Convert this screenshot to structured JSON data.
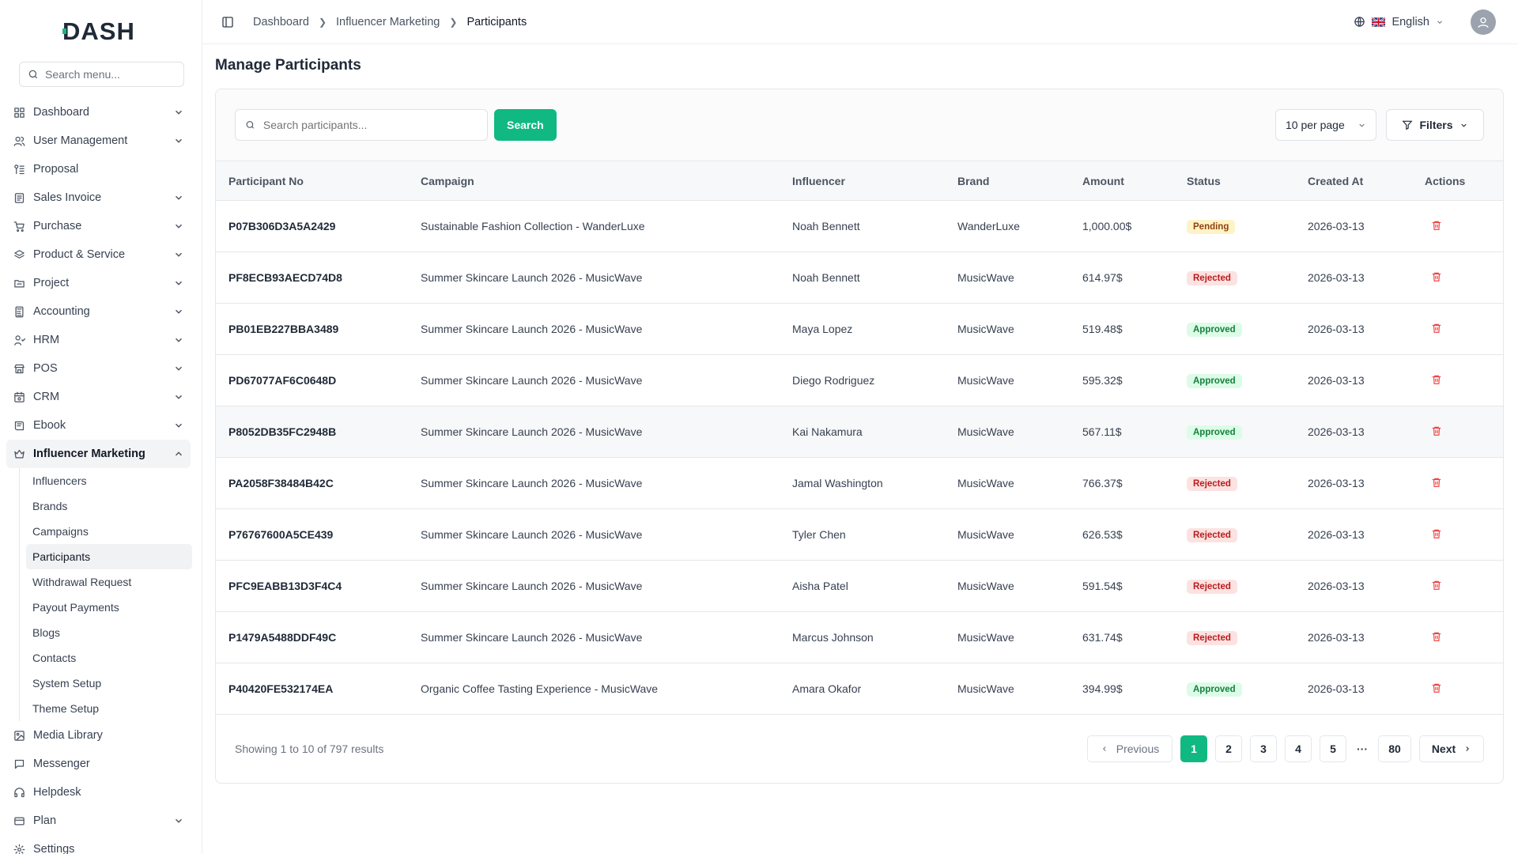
{
  "app": {
    "logo_text": "DASH"
  },
  "sidebar": {
    "search_placeholder": "Search menu...",
    "items": [
      {
        "label": "Dashboard",
        "icon": "grid-icon",
        "chevron": true
      },
      {
        "label": "User Management",
        "icon": "users-icon",
        "chevron": true
      },
      {
        "label": "Proposal",
        "icon": "proposal-icon",
        "chevron": false
      },
      {
        "label": "Sales Invoice",
        "icon": "invoice-icon",
        "chevron": true
      },
      {
        "label": "Purchase",
        "icon": "cart-icon",
        "chevron": true
      },
      {
        "label": "Product & Service",
        "icon": "layers-icon",
        "chevron": true
      },
      {
        "label": "Project",
        "icon": "folder-icon",
        "chevron": true
      },
      {
        "label": "Accounting",
        "icon": "calculator-icon",
        "chevron": true
      },
      {
        "label": "HRM",
        "icon": "hrm-icon",
        "chevron": true
      },
      {
        "label": "POS",
        "icon": "store-icon",
        "chevron": true
      },
      {
        "label": "CRM",
        "icon": "crm-icon",
        "chevron": true
      },
      {
        "label": "Ebook",
        "icon": "book-icon",
        "chevron": true
      },
      {
        "label": "Influencer Marketing",
        "icon": "crown-icon",
        "chevron": true,
        "open": true
      }
    ],
    "sub_items": [
      "Influencers",
      "Brands",
      "Campaigns",
      "Participants",
      "Withdrawal Request",
      "Payout Payments",
      "Blogs",
      "Contacts",
      "System Setup",
      "Theme Setup"
    ],
    "active_sub": "Participants",
    "bottom_items": [
      {
        "label": "Media Library",
        "icon": "image-icon",
        "chevron": false
      },
      {
        "label": "Messenger",
        "icon": "message-icon",
        "chevron": false
      },
      {
        "label": "Helpdesk",
        "icon": "headset-icon",
        "chevron": false
      },
      {
        "label": "Plan",
        "icon": "plan-icon",
        "chevron": true
      },
      {
        "label": "Settings",
        "icon": "gear-icon",
        "chevron": false
      }
    ]
  },
  "header": {
    "breadcrumb": [
      "Dashboard",
      "Influencer Marketing",
      "Participants"
    ],
    "language": "English"
  },
  "page": {
    "title": "Manage Participants",
    "search_placeholder": "Search participants...",
    "search_button": "Search",
    "per_page": "10 per page",
    "filters_label": "Filters"
  },
  "table": {
    "columns": [
      "Participant No",
      "Campaign",
      "Influencer",
      "Brand",
      "Amount",
      "Status",
      "Created At",
      "Actions"
    ],
    "rows": [
      {
        "no": "P07B306D3A5A2429",
        "campaign": "Sustainable Fashion Collection - WanderLuxe",
        "influencer": "Noah Bennett",
        "brand": "WanderLuxe",
        "amount": "1,000.00$",
        "status": "Pending",
        "created": "2026-03-13"
      },
      {
        "no": "PF8ECB93AECD74D8",
        "campaign": "Summer Skincare Launch 2026 - MusicWave",
        "influencer": "Noah Bennett",
        "brand": "MusicWave",
        "amount": "614.97$",
        "status": "Rejected",
        "created": "2026-03-13"
      },
      {
        "no": "PB01EB227BBA3489",
        "campaign": "Summer Skincare Launch 2026 - MusicWave",
        "influencer": "Maya Lopez",
        "brand": "MusicWave",
        "amount": "519.48$",
        "status": "Approved",
        "created": "2026-03-13"
      },
      {
        "no": "PD67077AF6C0648D",
        "campaign": "Summer Skincare Launch 2026 - MusicWave",
        "influencer": "Diego Rodriguez",
        "brand": "MusicWave",
        "amount": "595.32$",
        "status": "Approved",
        "created": "2026-03-13"
      },
      {
        "no": "P8052DB35FC2948B",
        "campaign": "Summer Skincare Launch 2026 - MusicWave",
        "influencer": "Kai Nakamura",
        "brand": "MusicWave",
        "amount": "567.11$",
        "status": "Approved",
        "created": "2026-03-13",
        "highlight": true
      },
      {
        "no": "PA2058F38484B42C",
        "campaign": "Summer Skincare Launch 2026 - MusicWave",
        "influencer": "Jamal Washington",
        "brand": "MusicWave",
        "amount": "766.37$",
        "status": "Rejected",
        "created": "2026-03-13"
      },
      {
        "no": "P76767600A5CE439",
        "campaign": "Summer Skincare Launch 2026 - MusicWave",
        "influencer": "Tyler Chen",
        "brand": "MusicWave",
        "amount": "626.53$",
        "status": "Rejected",
        "created": "2026-03-13"
      },
      {
        "no": "PFC9EABB13D3F4C4",
        "campaign": "Summer Skincare Launch 2026 - MusicWave",
        "influencer": "Aisha Patel",
        "brand": "MusicWave",
        "amount": "591.54$",
        "status": "Rejected",
        "created": "2026-03-13"
      },
      {
        "no": "P1479A5488DDF49C",
        "campaign": "Summer Skincare Launch 2026 - MusicWave",
        "influencer": "Marcus Johnson",
        "brand": "MusicWave",
        "amount": "631.74$",
        "status": "Rejected",
        "created": "2026-03-13"
      },
      {
        "no": "P40420FE532174EA",
        "campaign": "Organic Coffee Tasting Experience - MusicWave",
        "influencer": "Amara Okafor",
        "brand": "MusicWave",
        "amount": "394.99$",
        "status": "Approved",
        "created": "2026-03-13"
      }
    ]
  },
  "pagination": {
    "showing": "Showing 1 to 10 of 797 results",
    "previous": "Previous",
    "next": "Next",
    "pages": [
      "1",
      "2",
      "3",
      "4",
      "5"
    ],
    "ellipsis": "···",
    "last": "80",
    "current": "1"
  },
  "colors": {
    "accent": "#10b981",
    "danger": "#ef4444"
  }
}
